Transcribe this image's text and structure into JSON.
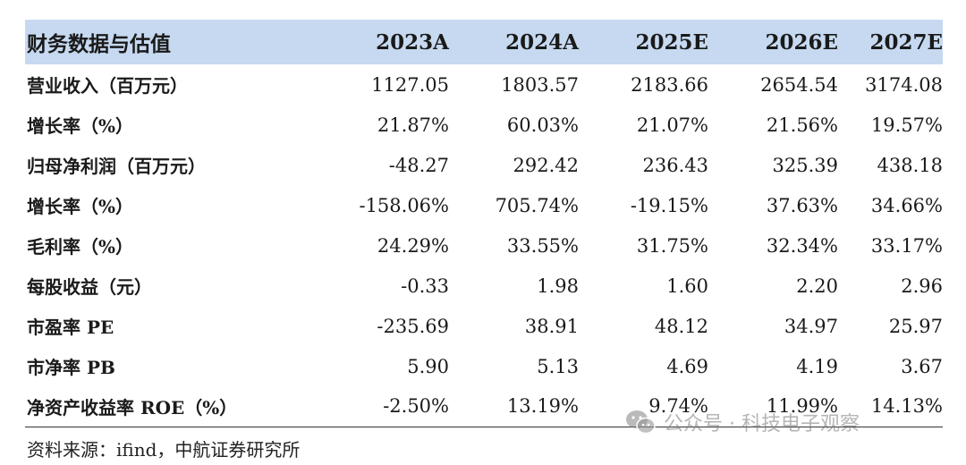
{
  "table": {
    "header": [
      "财务数据与估值",
      "2023A",
      "2024A",
      "2025E",
      "2026E",
      "2027E"
    ],
    "rows": [
      {
        "label": "营业收入（百万元）",
        "values": [
          "1127.05",
          "1803.57",
          "2183.66",
          "2654.54",
          "3174.08"
        ]
      },
      {
        "label": "增长率（%）",
        "values": [
          "21.87%",
          "60.03%",
          "21.07%",
          "21.56%",
          "19.57%"
        ]
      },
      {
        "label": "归母净利润（百万元）",
        "values": [
          "-48.27",
          "292.42",
          "236.43",
          "325.39",
          "438.18"
        ]
      },
      {
        "label": "增长率（%）",
        "values": [
          "-158.06%",
          "705.74%",
          "-19.15%",
          "37.63%",
          "34.66%"
        ]
      },
      {
        "label": "毛利率（%）",
        "values": [
          "24.29%",
          "33.55%",
          "31.75%",
          "32.34%",
          "33.17%"
        ]
      },
      {
        "label": "每股收益（元）",
        "values": [
          "-0.33",
          "1.98",
          "1.60",
          "2.20",
          "2.96"
        ]
      },
      {
        "label": "市盈率 PE",
        "values": [
          "-235.69",
          "38.91",
          "48.12",
          "34.97",
          "25.97"
        ]
      },
      {
        "label": "市净率 PB",
        "values": [
          "5.90",
          "5.13",
          "4.69",
          "4.19",
          "3.67"
        ]
      },
      {
        "label": "净资产收益率 ROE（%）",
        "values": [
          "-2.50%",
          "13.19%",
          "9.74%",
          "11.99%",
          "14.13%"
        ]
      }
    ]
  },
  "source": "资料来源：ifind，中航证券研究所",
  "watermark": {
    "icon": "wechat-icon",
    "text": "公众号 · 科技电子观察"
  },
  "colors": {
    "header_bg": "#c6d9f0"
  }
}
